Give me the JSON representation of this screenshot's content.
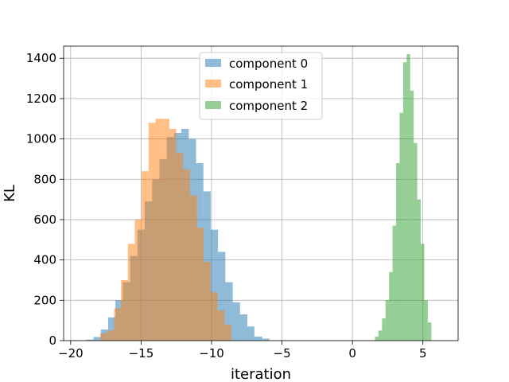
{
  "chart_data": {
    "type": "bar",
    "xlabel": "iteration",
    "ylabel": "KL",
    "xlim": [
      -20.5,
      7.5
    ],
    "ylim": [
      0,
      1460
    ],
    "xticks": [
      -20,
      -15,
      -10,
      -5,
      0,
      5
    ],
    "xtick_labels": [
      "−20",
      "−15",
      "−10",
      "−5",
      "0",
      "5"
    ],
    "yticks": [
      0,
      200,
      400,
      600,
      800,
      1000,
      1200,
      1400
    ],
    "ytick_labels": [
      "0",
      "200",
      "400",
      "600",
      "800",
      "1000",
      "1200",
      "1400"
    ],
    "grid": true,
    "legend_position": "upper center",
    "series": [
      {
        "name": "component 0",
        "color": "#1f77b4",
        "bins": [
          -18.9,
          -18.38,
          -17.86,
          -17.34,
          -16.82,
          -16.3,
          -15.78,
          -15.26,
          -14.74,
          -14.22,
          -13.7,
          -13.18,
          -12.66,
          -12.14,
          -11.62,
          -11.1,
          -10.58,
          -10.06,
          -9.54,
          -9.02,
          -8.5,
          -7.98,
          -7.46,
          -6.96,
          -6.4,
          -5.9
        ],
        "counts": [
          5,
          18,
          55,
          115,
          200,
          290,
          420,
          550,
          690,
          800,
          900,
          1010,
          1030,
          1050,
          1000,
          880,
          740,
          550,
          440,
          290,
          190,
          130,
          70,
          20,
          10
        ]
      },
      {
        "name": "component 1",
        "color": "#ff7f0e",
        "bins": [
          -17.9,
          -17.41,
          -16.92,
          -16.43,
          -15.94,
          -15.45,
          -14.96,
          -14.47,
          -13.98,
          -13.49,
          -13.0,
          -12.51,
          -12.02,
          -11.53,
          -11.04,
          -10.55,
          -10.06,
          -9.57,
          -9.08,
          -8.59
        ],
        "counts": [
          35,
          50,
          160,
          300,
          480,
          600,
          840,
          1080,
          1100,
          1100,
          1050,
          930,
          850,
          720,
          560,
          390,
          240,
          150,
          80
        ]
      },
      {
        "name": "component 2",
        "color": "#2ca02c",
        "bins": [
          1.6,
          1.85,
          2.1,
          2.35,
          2.6,
          2.85,
          3.1,
          3.35,
          3.6,
          3.85,
          4.1,
          4.35,
          4.6,
          4.85,
          5.1,
          5.35,
          5.6
        ],
        "counts": [
          20,
          50,
          110,
          200,
          340,
          570,
          880,
          1130,
          1380,
          1420,
          1240,
          980,
          700,
          480,
          200,
          90
        ]
      }
    ]
  }
}
